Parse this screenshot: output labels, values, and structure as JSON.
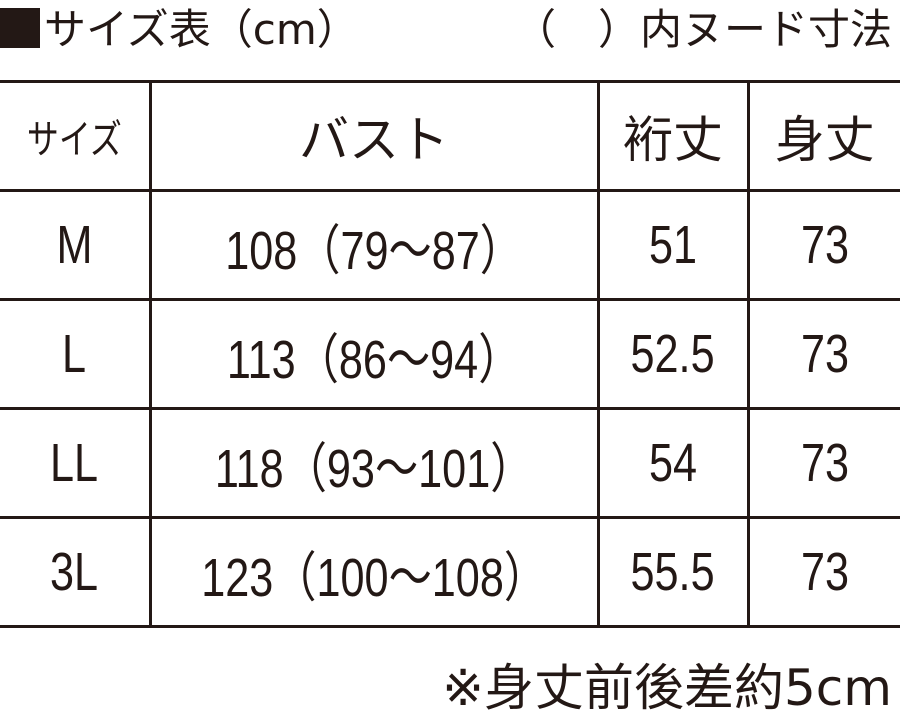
{
  "title": "サイズ表（cm）",
  "nude_note": "（　）内ヌード寸法",
  "headers": [
    "サイズ",
    "バスト",
    "裄丈",
    "身丈"
  ],
  "rows": [
    {
      "size": "M",
      "bust": "108（79〜87）",
      "sleeve": "51",
      "length": "73"
    },
    {
      "size": "L",
      "bust": "113（86〜94）",
      "sleeve": "52.5",
      "length": "73"
    },
    {
      "size": "LL",
      "bust": "118（93〜101）",
      "sleeve": "54",
      "length": "73"
    },
    {
      "size": "3L",
      "bust": "123（100〜108）",
      "sleeve": "55.5",
      "length": "73"
    }
  ],
  "footer": "※身丈前後差約5cm",
  "colors": {
    "ink": "#231815"
  }
}
